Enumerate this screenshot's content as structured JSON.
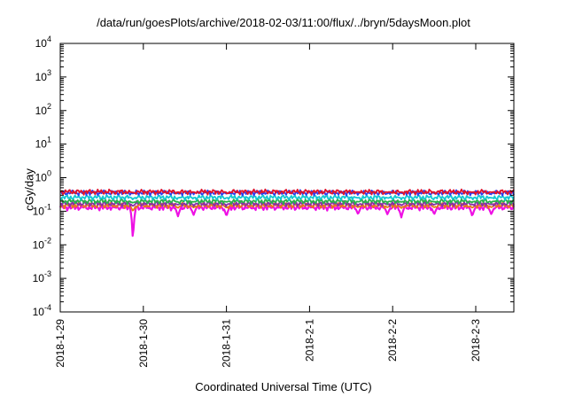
{
  "chart_data": {
    "type": "line",
    "title": "/data/run/goesPlots/archive/2018-02-03/11:00/flux/../bryn/5daysMoon.plot",
    "xlabel": "Coordinated Universal Time (UTC)",
    "ylabel": "cGy/day",
    "yscale": "log",
    "ylim": [
      0.0001,
      10000
    ],
    "xlim": [
      "2018-01-29 00:00",
      "2018-02-03 11:00"
    ],
    "grid": false,
    "legend": "none",
    "yticks": [
      {
        "base": "10",
        "exp": "4"
      },
      {
        "base": "10",
        "exp": "3"
      },
      {
        "base": "10",
        "exp": "2"
      },
      {
        "base": "10",
        "exp": "1"
      },
      {
        "base": "10",
        "exp": "0"
      },
      {
        "base": "10",
        "exp": "-1"
      },
      {
        "base": "10",
        "exp": "-2"
      },
      {
        "base": "10",
        "exp": "-3"
      },
      {
        "base": "10",
        "exp": "-4"
      }
    ],
    "xticks": [
      "2018-1-29",
      "2018-1-30",
      "2018-1-31",
      "2018-2-1",
      "2018-2-2",
      "2018-2-3"
    ],
    "series": [
      {
        "color": "#e0142b",
        "level": 0.38
      },
      {
        "color": "#2c3bf0",
        "level": 0.36
      },
      {
        "color": "#14c8d2",
        "level": 0.26
      },
      {
        "color": "#2ab04a",
        "level": 0.2
      },
      {
        "color": "#8a2da8",
        "level": 0.17
      },
      {
        "color": "#e87818",
        "level": 0.15
      },
      {
        "color": "#ee10e4",
        "level": 0.13
      }
    ],
    "dips": [
      {
        "time": "2018-01-29 21:00",
        "value": 0.006
      },
      {
        "time": "2018-01-30 10:00",
        "value": 0.07
      },
      {
        "time": "2018-01-30 14:30",
        "value": 0.075
      },
      {
        "time": "2018-01-31 00:00",
        "value": 0.07
      },
      {
        "time": "2018-02-01 14:00",
        "value": 0.08
      },
      {
        "time": "2018-02-01 22:30",
        "value": 0.08
      },
      {
        "time": "2018-02-02 02:30",
        "value": 0.065
      },
      {
        "time": "2018-02-02 12:00",
        "value": 0.08
      },
      {
        "time": "2018-02-02 23:00",
        "value": 0.07
      },
      {
        "time": "2018-02-03 04:30",
        "value": 0.08
      }
    ]
  }
}
